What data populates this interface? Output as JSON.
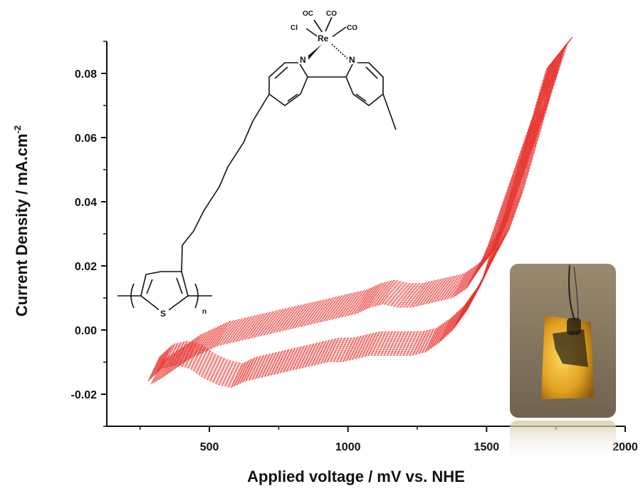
{
  "chart_data": {
    "type": "line",
    "title": "",
    "xlabel": "Applied voltage / mV vs. NHE",
    "ylabel": "Current Density / mA.cm",
    "ylabel_superscript": "-2",
    "xlim": [
      130,
      2000
    ],
    "ylim": [
      -0.03,
      0.09
    ],
    "xticks": [
      500,
      1000,
      1500,
      2000
    ],
    "xtick_labels": [
      "500",
      "1000",
      "1500",
      "2000"
    ],
    "yticks": [
      -0.02,
      0.0,
      0.02,
      0.04,
      0.06,
      0.08
    ],
    "ytick_labels": [
      "-0.02",
      "0.00",
      "0.02",
      "0.04",
      "0.06",
      "0.08"
    ],
    "grid": false,
    "legend": "none",
    "series_color": "#e8302a",
    "series": [
      {
        "x": [
          300,
          350,
          400,
          450,
          500,
          550,
          600,
          650,
          700,
          750,
          800,
          850,
          900,
          950,
          1000,
          1050,
          1100,
          1150,
          1200,
          1250,
          1300,
          1350,
          1400,
          1450,
          1500,
          1550,
          1600,
          1650,
          1700,
          1750,
          1780,
          1760,
          1730,
          1700,
          1660,
          1620,
          1580,
          1540,
          1500,
          1450,
          1400,
          1350,
          1300,
          1250,
          1200,
          1150,
          1100,
          1050,
          1000,
          950,
          900,
          850,
          800,
          750,
          700,
          650,
          600,
          550,
          500,
          450,
          400,
          350,
          310
        ],
        "y": [
          -0.012,
          -0.008,
          -0.007,
          -0.008,
          -0.011,
          -0.013,
          -0.014,
          -0.012,
          -0.011,
          -0.01,
          -0.009,
          -0.008,
          -0.007,
          -0.006,
          -0.006,
          -0.005,
          -0.004,
          -0.004,
          -0.004,
          -0.004,
          -0.003,
          0.0,
          0.004,
          0.01,
          0.018,
          0.028,
          0.04,
          0.055,
          0.07,
          0.085,
          0.088,
          0.086,
          0.078,
          0.07,
          0.06,
          0.05,
          0.04,
          0.03,
          0.022,
          0.017,
          0.014,
          0.013,
          0.012,
          0.011,
          0.011,
          0.012,
          0.011,
          0.009,
          0.008,
          0.007,
          0.006,
          0.005,
          0.004,
          0.003,
          0.002,
          0.001,
          0.0,
          -0.001,
          -0.003,
          -0.005,
          -0.008,
          -0.011,
          -0.013
        ]
      }
    ]
  },
  "structure_labels": {
    "oc": "OC",
    "co1": "CO",
    "co2": "CO",
    "cl": "Cl",
    "re": "Re",
    "n1": "N",
    "n2": "N",
    "s": "S",
    "n_sub": "n"
  },
  "photo_inset": {
    "description_icon": "electrode-photo"
  }
}
